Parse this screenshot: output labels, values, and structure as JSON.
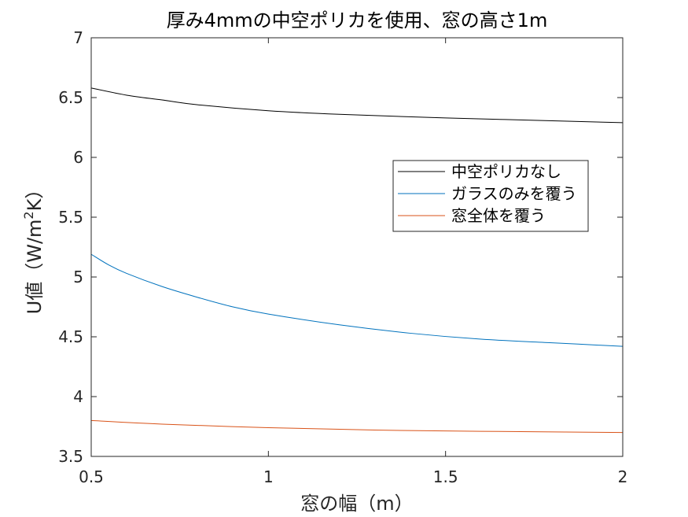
{
  "chart_data": {
    "type": "line",
    "title": "厚み4mmの中空ポリカを使用、窓の高さ1m",
    "xlabel": "窓の幅（m）",
    "ylabel_main": "U値（W/m",
    "ylabel_sup": "2",
    "ylabel_end": "K）",
    "xlim": [
      0.5,
      2
    ],
    "ylim": [
      3.5,
      7
    ],
    "xticks": [
      0.5,
      1,
      1.5,
      2
    ],
    "xtick_labels": [
      "0.5",
      "1",
      "1.5",
      "2"
    ],
    "yticks": [
      3.5,
      4,
      4.5,
      5,
      5.5,
      6,
      6.5,
      7
    ],
    "ytick_labels": [
      "3.5",
      "4",
      "4.5",
      "5",
      "5.5",
      "6",
      "6.5",
      "7"
    ],
    "grid": false,
    "legend_position": "right-center",
    "series": [
      {
        "name": "中空ポリカなし",
        "color": "#000000",
        "x": [
          0.5,
          0.6,
          0.7,
          0.8,
          1.0,
          1.2,
          1.5,
          1.75,
          2.0
        ],
        "y": [
          6.58,
          6.52,
          6.48,
          6.44,
          6.39,
          6.36,
          6.33,
          6.31,
          6.29
        ]
      },
      {
        "name": "ガラスのみを覆う",
        "color": "#0072bd",
        "x": [
          0.5,
          0.55,
          0.6,
          0.7,
          0.8,
          0.9,
          1.0,
          1.2,
          1.4,
          1.6,
          1.8,
          2.0
        ],
        "y": [
          5.19,
          5.1,
          5.03,
          4.92,
          4.83,
          4.75,
          4.69,
          4.6,
          4.53,
          4.48,
          4.45,
          4.42
        ]
      },
      {
        "name": "窓全体を覆う",
        "color": "#d95319",
        "x": [
          0.5,
          0.7,
          1.0,
          1.3,
          1.6,
          2.0
        ],
        "y": [
          3.8,
          3.77,
          3.74,
          3.72,
          3.71,
          3.7
        ]
      }
    ]
  }
}
